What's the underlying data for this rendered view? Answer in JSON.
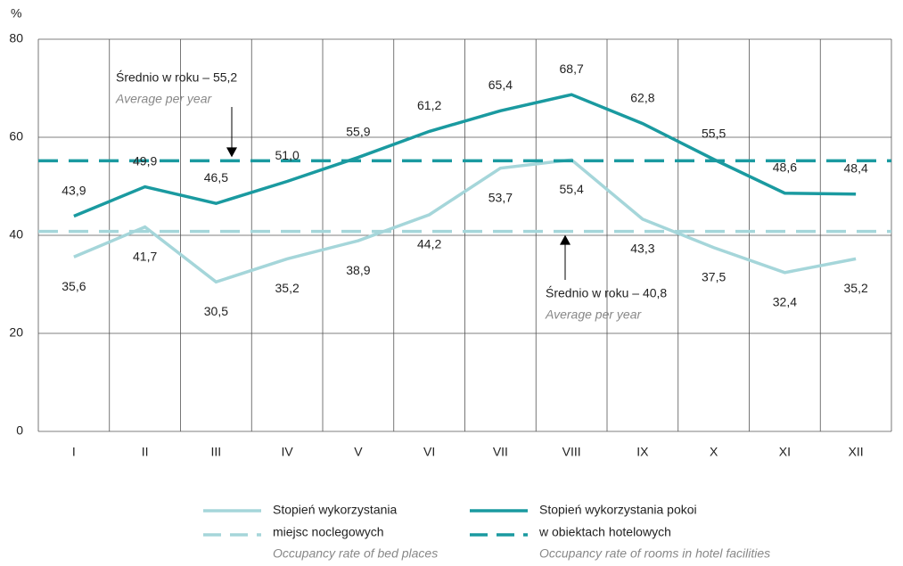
{
  "chart_data": {
    "type": "line",
    "y_axis_label": "%",
    "categories": [
      "I",
      "II",
      "III",
      "IV",
      "V",
      "VI",
      "VII",
      "VIII",
      "IX",
      "X",
      "XI",
      "XII"
    ],
    "ylim": [
      0,
      80
    ],
    "yticks": [
      0,
      20,
      40,
      60,
      80
    ],
    "grid": true,
    "series": [
      {
        "name": [
          "Stopień wykorzystania",
          "miejsc noclegowych"
        ],
        "name_en": "Occupancy rate of bed places",
        "color": "#a5d6da",
        "values": [
          35.6,
          41.7,
          30.5,
          35.2,
          38.9,
          44.2,
          53.7,
          55.4,
          43.3,
          37.5,
          32.4,
          35.2
        ],
        "value_labels": [
          "35,6",
          "41,7",
          "30,5",
          "35,2",
          "38,9",
          "44,2",
          "53,7",
          "55,4",
          "43,3",
          "37,5",
          "32,4",
          "35,2"
        ],
        "average": {
          "value": 40.8,
          "label": "Średnio w roku – 40,8",
          "label_en": "Average per year"
        }
      },
      {
        "name": [
          "Stopień wykorzystania pokoi",
          "w obiektach hotelowych"
        ],
        "name_en": "Occupancy rate of rooms in hotel facilities",
        "color": "#1a9aa0",
        "values": [
          43.9,
          49.9,
          46.5,
          51.0,
          55.9,
          61.2,
          65.4,
          68.7,
          62.8,
          55.5,
          48.6,
          48.4
        ],
        "value_labels": [
          "43,9",
          "49,9",
          "46,5",
          "51,0",
          "55,9",
          "61,2",
          "65,4",
          "68,7",
          "62,8",
          "55,5",
          "48,6",
          "48,4"
        ],
        "average": {
          "value": 55.2,
          "label": "Średnio w roku – 55,2",
          "label_en": "Average per year"
        }
      }
    ]
  }
}
